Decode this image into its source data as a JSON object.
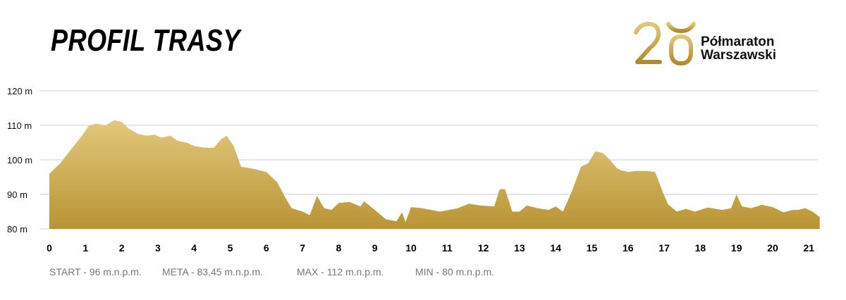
{
  "title": "PROFIL TRASY",
  "logo": {
    "mark": "20",
    "line1": "Półmaraton",
    "line2": "Warszawski",
    "accent": "#c9a547"
  },
  "stats": [
    "START - 96 m.n.p.m.",
    "META - 83,45 m.n.p.m.",
    "MAX - 112 m.n.p.m.",
    "MIN - 80 m.n.p.m."
  ],
  "chart_data": {
    "type": "area",
    "title": "PROFIL TRASY",
    "xlabel": "",
    "ylabel": "",
    "xlim": [
      0,
      21.1
    ],
    "ylim": [
      80,
      120
    ],
    "y_ticks": [
      80,
      90,
      100,
      110,
      120
    ],
    "y_tick_labels": [
      "80 m",
      "90 m",
      "100 m",
      "110 m",
      "120 m"
    ],
    "x_ticks": [
      0,
      1,
      2,
      3,
      4,
      5,
      6,
      7,
      8,
      9,
      10,
      11,
      12,
      13,
      14,
      15,
      16,
      17,
      18,
      19,
      20,
      21
    ],
    "x_tick_labels": [
      "0",
      "1",
      "2",
      "3",
      "4",
      "5",
      "6",
      "7",
      "8",
      "9",
      "10",
      "11",
      "12",
      "13",
      "14",
      "15",
      "16",
      "17",
      "18",
      "19",
      "20",
      "21"
    ],
    "grid": "horizontal",
    "fill_gradient": [
      "#e3c97c",
      "#b89434"
    ],
    "x": [
      0,
      0.1,
      0.3,
      0.6,
      0.9,
      1.1,
      1.3,
      1.55,
      1.8,
      2.0,
      2.2,
      2.45,
      2.7,
      2.9,
      3.1,
      3.35,
      3.55,
      3.8,
      4.0,
      4.3,
      4.55,
      4.75,
      4.9,
      5.1,
      5.3,
      5.6,
      6.0,
      6.3,
      6.5,
      6.7,
      7.0,
      7.2,
      7.4,
      7.6,
      7.8,
      8.0,
      8.3,
      8.6,
      8.7,
      9.0,
      9.3,
      9.6,
      9.75,
      9.85,
      10.0,
      10.3,
      10.8,
      11.3,
      11.6,
      11.9,
      12.3,
      12.45,
      12.6,
      12.8,
      13.0,
      13.2,
      13.5,
      13.8,
      14.0,
      14.2,
      14.45,
      14.7,
      14.9,
      15.1,
      15.3,
      15.5,
      15.7,
      15.8,
      16.0,
      16.2,
      16.5,
      16.75,
      16.95,
      17.1,
      17.35,
      17.6,
      17.85,
      18.2,
      18.6,
      18.85,
      19.0,
      19.15,
      19.4,
      19.7,
      20.0,
      20.3,
      20.55,
      20.7,
      20.9,
      21.1,
      21.3
    ],
    "values": [
      96,
      97,
      99,
      103,
      107,
      110,
      110.5,
      110,
      111.5,
      111,
      109,
      107.5,
      107,
      107.3,
      106.5,
      107,
      105.5,
      105,
      104,
      103.5,
      103.5,
      106,
      107,
      104,
      98,
      97.5,
      96.5,
      93.5,
      89.5,
      86,
      85,
      84,
      89.5,
      86,
      85.5,
      87.5,
      87.8,
      86.5,
      88,
      85.5,
      82.8,
      82.2,
      84.8,
      82,
      86.3,
      86,
      85,
      86,
      87.3,
      86.8,
      86.5,
      91.5,
      91.5,
      85,
      85,
      86.8,
      86,
      85.5,
      86.5,
      85,
      91,
      98,
      99,
      102.5,
      102,
      100,
      97.5,
      97,
      96.5,
      96.8,
      96.8,
      96.5,
      91,
      87.2,
      85,
      85.8,
      85,
      86.2,
      85.5,
      86,
      90,
      86.5,
      86,
      87,
      86.3,
      84.8,
      85.5,
      85.5,
      86,
      85,
      83.45
    ]
  }
}
